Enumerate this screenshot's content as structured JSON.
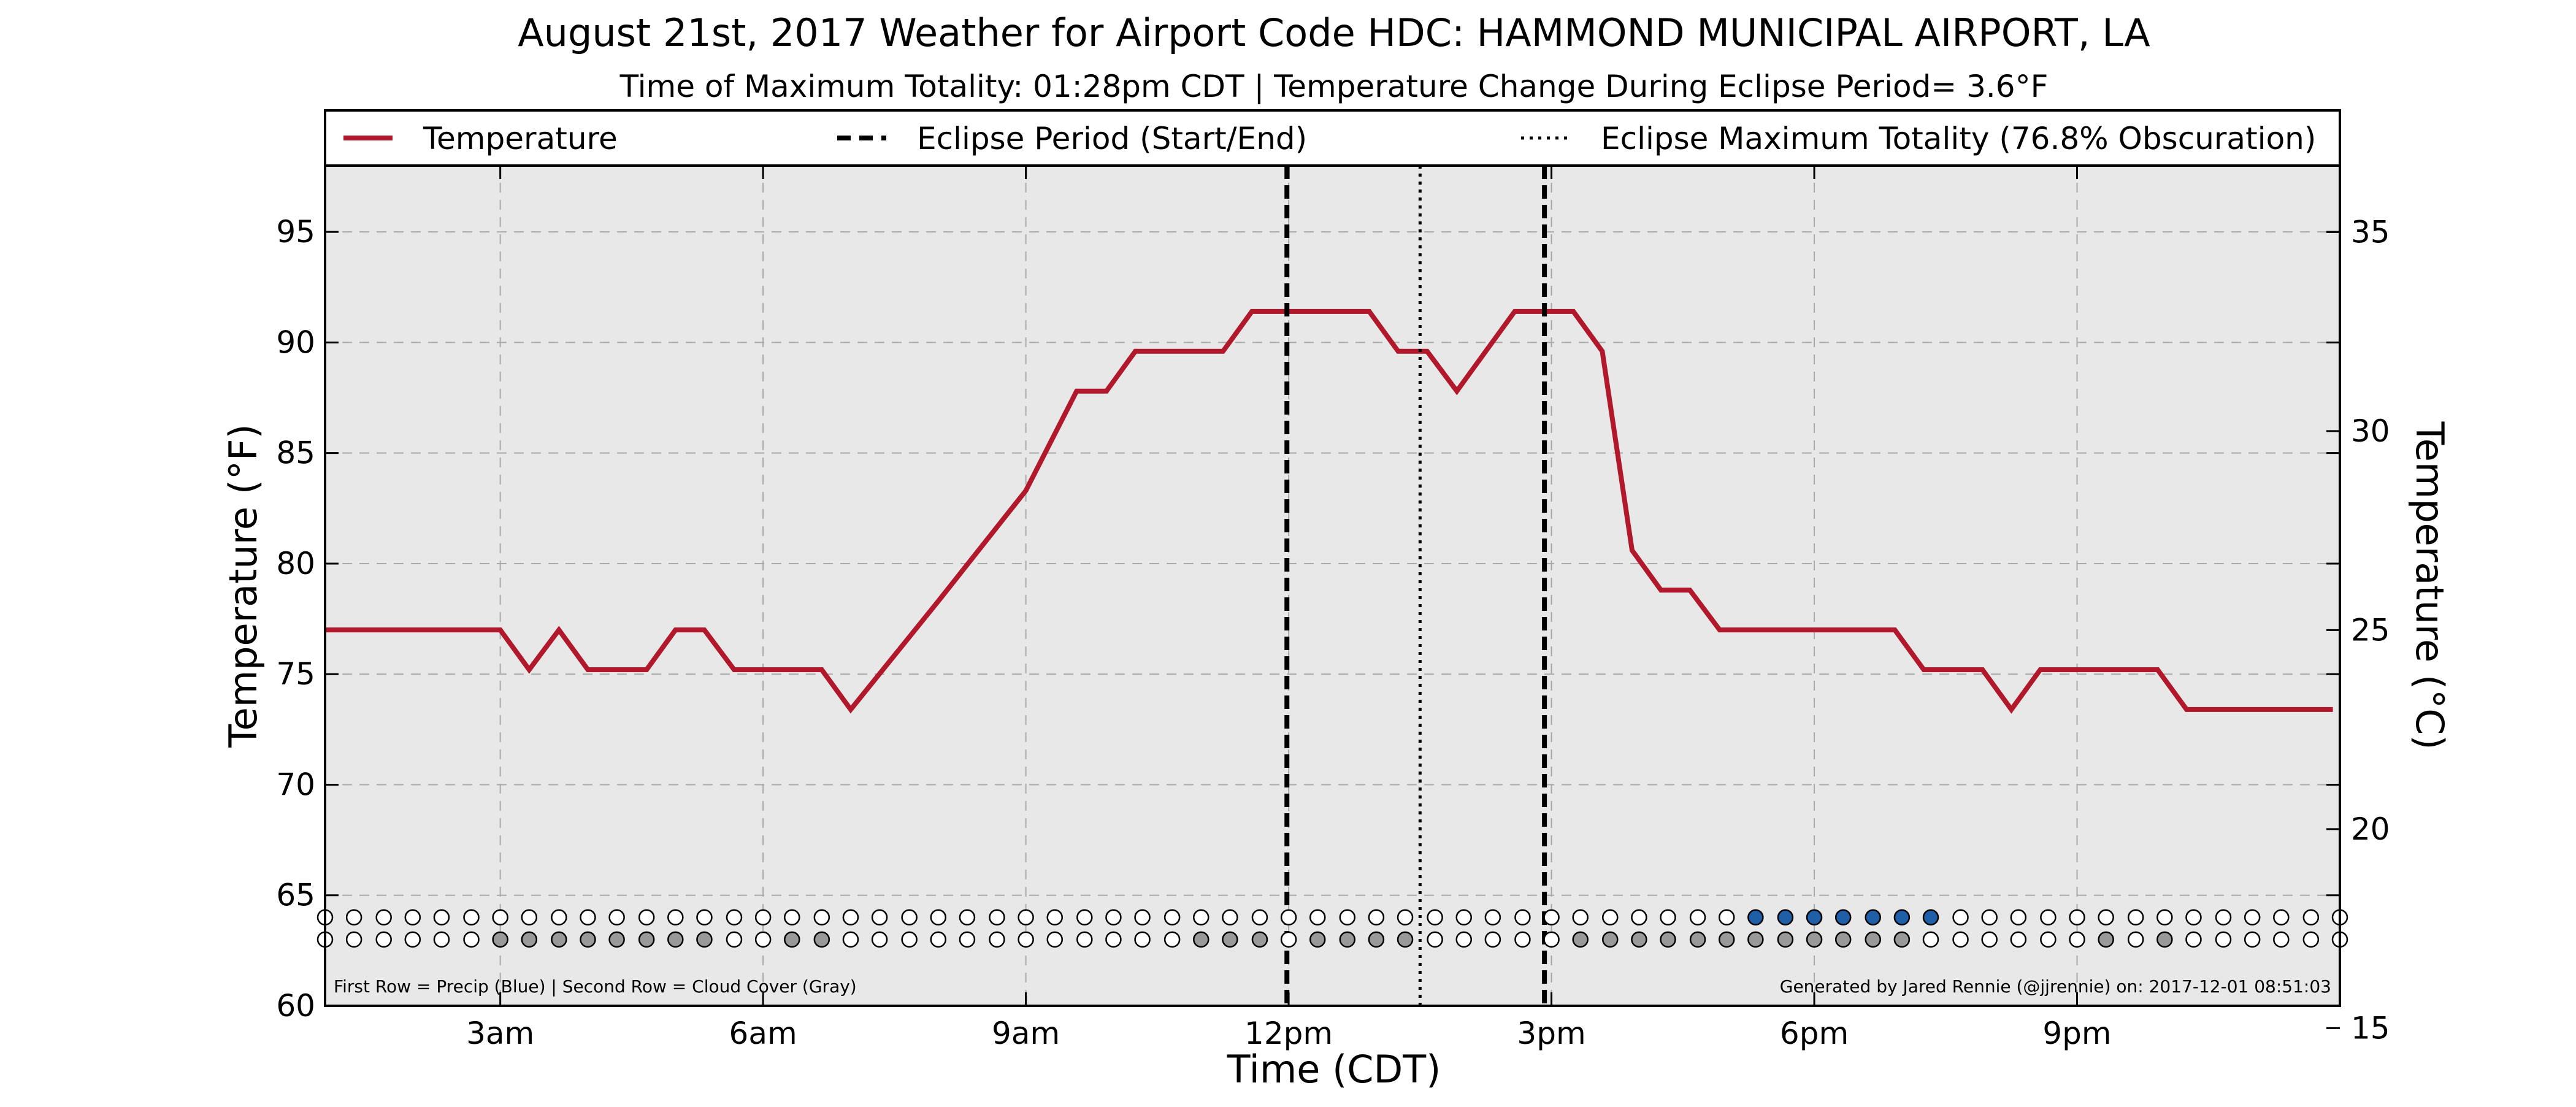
{
  "chart_data": {
    "type": "line",
    "title": "August 21st, 2017 Weather for Airport Code HDC: HAMMOND MUNICIPAL AIRPORT, LA",
    "subtitle": "Time of Maximum Totality: 01:28pm CDT | Temperature Change During Eclipse Period= 3.6°F",
    "xlabel": "Time (CDT)",
    "ylabel": "Temperature (°F)",
    "ylabel_right": "Temperature (°C)",
    "xlim": [
      1,
      24
    ],
    "ylim": [
      60,
      98
    ],
    "ylim_right": [
      15.56,
      36.67
    ],
    "x_ticks": [
      {
        "x": 3,
        "label": "3am"
      },
      {
        "x": 6,
        "label": "6am"
      },
      {
        "x": 9,
        "label": "9am"
      },
      {
        "x": 12,
        "label": "12pm"
      },
      {
        "x": 15,
        "label": "3pm"
      },
      {
        "x": 18,
        "label": "6pm"
      },
      {
        "x": 21,
        "label": "9pm"
      }
    ],
    "y_ticks": [
      60,
      65,
      70,
      75,
      80,
      85,
      90,
      95
    ],
    "y_ticks_right": [
      15,
      20,
      25,
      30,
      35
    ],
    "grid": true,
    "legend_position": "top",
    "legend": {
      "temperature": "Temperature",
      "eclipse_period": "Eclipse Period (Start/End)",
      "eclipse_max": "Eclipse Maximum Totality (76.8% Obscuration)"
    },
    "series": [
      {
        "name": "Temperature",
        "color": "#b2182b",
        "x": [
          1,
          1.5,
          2,
          2.5,
          3,
          3.33,
          3.67,
          4,
          4.33,
          4.67,
          5,
          5.33,
          5.67,
          6,
          6.33,
          6.67,
          7,
          8,
          9,
          9.58,
          9.92,
          10.25,
          10.58,
          10.92,
          11.25,
          11.58,
          11.92,
          12.25,
          12.58,
          12.92,
          13.25,
          13.58,
          13.92,
          14.25,
          14.58,
          14.92,
          15.25,
          15.58,
          15.92,
          16.25,
          16.58,
          16.92,
          17.25,
          17.58,
          17.92,
          18.25,
          18.58,
          18.92,
          19.25,
          19.58,
          19.92,
          20.25,
          20.58,
          20.92,
          21.25,
          21.58,
          21.92,
          22.25,
          22.58,
          22.92,
          23.25,
          23.58,
          23.92
        ],
        "y": [
          77,
          77,
          77,
          77,
          77,
          75.2,
          77,
          75.2,
          75.2,
          75.2,
          77,
          77,
          75.2,
          75.2,
          75.2,
          75.2,
          73.4,
          78.3,
          83.3,
          87.8,
          87.8,
          89.6,
          89.6,
          89.6,
          89.6,
          91.4,
          91.4,
          91.4,
          91.4,
          91.4,
          89.6,
          89.6,
          87.8,
          89.6,
          91.4,
          91.4,
          91.4,
          89.6,
          80.6,
          78.8,
          78.8,
          77,
          77,
          77,
          77,
          77,
          77,
          77,
          75.2,
          75.2,
          75.2,
          73.4,
          75.2,
          75.2,
          75.2,
          75.2,
          75.2,
          73.4,
          73.4,
          73.4,
          73.4,
          73.4,
          73.4
        ]
      }
    ],
    "eclipse_start": 11.98,
    "eclipse_end": 14.92,
    "eclipse_max_time": 13.5,
    "marker_rows": {
      "y_precip": 64,
      "y_cloud": 63,
      "x": [
        1,
        1.33,
        1.67,
        2,
        2.33,
        2.67,
        3,
        3.33,
        3.67,
        4,
        4.33,
        4.67,
        5,
        5.33,
        5.67,
        6,
        6.33,
        6.67,
        7,
        7.33,
        7.67,
        8,
        8.33,
        8.67,
        9,
        9.33,
        9.67,
        10,
        10.33,
        10.67,
        11,
        11.33,
        11.67,
        12,
        12.33,
        12.67,
        13,
        13.33,
        13.67,
        14,
        14.33,
        14.67,
        15,
        15.33,
        15.67,
        16,
        16.33,
        16.67,
        17,
        17.33,
        17.67,
        18,
        18.33,
        18.67,
        19,
        19.33,
        19.67,
        20,
        20.33,
        20.67,
        21,
        21.33,
        21.67,
        22,
        22.33,
        22.67,
        23,
        23.33,
        23.67,
        24
      ],
      "precip": [
        0,
        0,
        0,
        0,
        0,
        0,
        0,
        0,
        0,
        0,
        0,
        0,
        0,
        0,
        0,
        0,
        0,
        0,
        0,
        0,
        0,
        0,
        0,
        0,
        0,
        0,
        0,
        0,
        0,
        0,
        0,
        0,
        0,
        0,
        0,
        0,
        0,
        0,
        0,
        0,
        0,
        0,
        0,
        0,
        0,
        0,
        0,
        0,
        0,
        1,
        1,
        1,
        1,
        1,
        1,
        1,
        0,
        0,
        0,
        0,
        0,
        0,
        0,
        0,
        0,
        0,
        0,
        0,
        0,
        0
      ],
      "cloud": [
        0,
        0,
        0,
        0,
        0,
        0,
        1,
        1,
        1,
        1,
        1,
        1,
        1,
        1,
        0,
        0,
        1,
        1,
        0,
        0,
        0,
        0,
        0,
        0,
        0,
        0,
        0,
        0,
        0,
        0,
        1,
        1,
        1,
        0,
        1,
        1,
        1,
        1,
        0,
        0,
        0,
        0,
        0,
        1,
        1,
        1,
        1,
        1,
        1,
        1,
        1,
        1,
        1,
        1,
        1,
        0,
        0,
        0,
        0,
        0,
        0,
        1,
        0,
        1,
        0,
        0,
        0,
        0,
        0,
        0
      ],
      "precip_color": "#1f5fa8",
      "cloud_color": "#999999"
    },
    "annotations": {
      "rows_note": "First Row = Precip (Blue) | Second Row = Cloud Cover (Gray)",
      "credit": "Generated by Jared Rennie (@jjrennie) on: 2017-12-01 08:51:03"
    }
  }
}
